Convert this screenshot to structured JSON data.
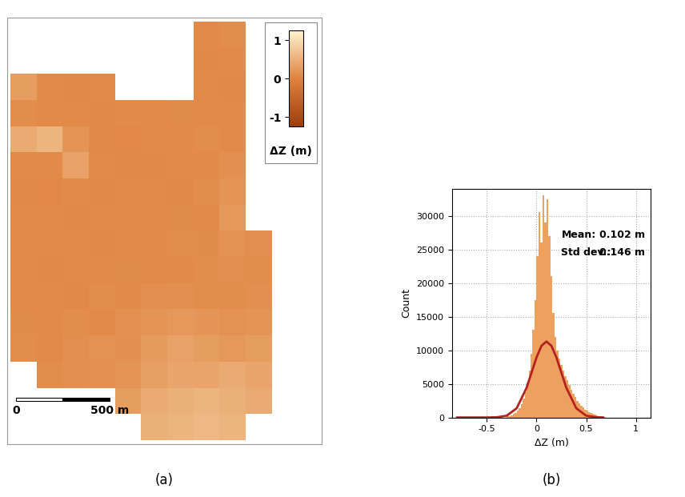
{
  "chart_data": [
    {
      "type": "heatmap",
      "panel_label": "(a)",
      "cell_size": 140,
      "cells": [
        [
          null,
          null,
          null,
          null,
          null,
          null,
          null,
          0.1,
          0.12,
          null
        ],
        [
          null,
          null,
          null,
          null,
          null,
          null,
          null,
          0.08,
          0.1,
          null
        ],
        [
          0.3,
          0.1,
          0.08,
          0.09,
          null,
          null,
          null,
          0.1,
          0.08,
          null
        ],
        [
          0.12,
          0.09,
          0.1,
          0.08,
          0.09,
          0.1,
          0.11,
          0.09,
          0.1,
          null
        ],
        [
          0.45,
          0.55,
          0.2,
          0.08,
          0.07,
          0.09,
          0.1,
          0.12,
          0.09,
          null
        ],
        [
          0.1,
          0.09,
          0.35,
          0.1,
          0.08,
          0.08,
          0.09,
          0.1,
          0.15,
          null
        ],
        [
          0.08,
          0.07,
          0.09,
          0.08,
          0.09,
          0.1,
          0.08,
          0.12,
          0.2,
          null
        ],
        [
          0.09,
          0.1,
          0.08,
          0.09,
          0.1,
          0.09,
          0.11,
          0.1,
          0.25,
          null
        ],
        [
          0.1,
          0.09,
          0.1,
          0.08,
          0.09,
          0.1,
          0.12,
          0.11,
          0.18,
          0.14
        ],
        [
          0.09,
          0.08,
          0.09,
          0.1,
          0.11,
          0.1,
          0.09,
          0.12,
          0.14,
          0.12
        ],
        [
          0.1,
          0.09,
          0.08,
          0.12,
          0.1,
          0.14,
          0.15,
          0.13,
          0.12,
          0.15
        ],
        [
          0.11,
          0.1,
          0.12,
          0.1,
          0.16,
          0.2,
          0.25,
          0.22,
          0.18,
          0.2
        ],
        [
          0.12,
          0.1,
          0.14,
          0.18,
          0.15,
          0.28,
          0.35,
          0.3,
          0.25,
          0.3
        ],
        [
          null,
          0.13,
          0.15,
          0.16,
          0.2,
          0.32,
          0.4,
          0.38,
          0.45,
          0.4
        ],
        [
          null,
          null,
          null,
          null,
          0.3,
          0.45,
          0.5,
          0.55,
          0.5,
          0.45
        ],
        [
          null,
          null,
          null,
          null,
          null,
          0.5,
          0.55,
          0.6,
          0.55,
          null
        ]
      ],
      "colorbar": {
        "range": [
          -1.25,
          1.25
        ],
        "ticks": [
          -1,
          0,
          1
        ],
        "label": "ΔZ (m)"
      },
      "scale_bar": {
        "length": 500,
        "start_label": "0",
        "label": "500 m"
      }
    },
    {
      "type": "histogram",
      "panel_label": "(b)",
      "x_label": "ΔZ (m)",
      "y_label": "Count",
      "bins": [
        -0.3,
        -0.28,
        -0.26,
        -0.24,
        -0.22,
        -0.2,
        -0.18,
        -0.16,
        -0.14,
        -0.12,
        -0.1,
        -0.08,
        -0.06,
        -0.04,
        -0.02,
        0.0,
        0.02,
        0.04,
        0.06,
        0.08,
        0.1,
        0.12,
        0.14,
        0.16,
        0.18,
        0.2,
        0.22,
        0.24,
        0.26,
        0.28,
        0.3,
        0.32,
        0.34,
        0.36,
        0.38,
        0.4,
        0.42,
        0.44,
        0.46,
        0.48,
        0.5,
        0.52,
        0.54,
        0.56,
        0.58,
        0.6,
        0.62,
        0.64,
        0.66,
        0.68,
        0.7
      ],
      "counts": [
        150,
        250,
        350,
        500,
        700,
        1000,
        1400,
        2000,
        2800,
        3800,
        5200,
        7000,
        9500,
        13000,
        17500,
        24000,
        30500,
        26000,
        33000,
        29000,
        32500,
        27000,
        21000,
        15500,
        12000,
        10000,
        8800,
        7800,
        7000,
        6200,
        5500,
        4800,
        4100,
        3500,
        3000,
        2500,
        2100,
        1800,
        1500,
        1200,
        1000,
        800,
        650,
        500,
        380,
        280,
        200,
        140,
        90,
        50
      ],
      "color": "#eda15f",
      "fit": {
        "color": "#b52020",
        "x": [
          -0.8,
          -0.7,
          -0.6,
          -0.5,
          -0.4,
          -0.3,
          -0.2,
          -0.1,
          0.0,
          0.05,
          0.1,
          0.15,
          0.2,
          0.3,
          0.4,
          0.5,
          0.6,
          0.67
        ],
        "values": [
          0,
          0,
          0,
          0,
          32,
          266,
          1370,
          4420,
          8940,
          10660,
          11300,
          10660,
          8940,
          4420,
          1370,
          266,
          32,
          6
        ]
      },
      "stats": [
        {
          "name": "Mean:",
          "text": "0.102 m"
        },
        {
          "name": "Std dev.:",
          "text": "0.146 m"
        }
      ],
      "xlim": [
        -0.85,
        1.15
      ],
      "ylim": [
        0,
        34000
      ],
      "xticks": [
        -0.5,
        0,
        0.5,
        1
      ],
      "yticks": [
        0,
        5000,
        10000,
        15000,
        20000,
        25000,
        30000
      ],
      "grid": true
    }
  ]
}
